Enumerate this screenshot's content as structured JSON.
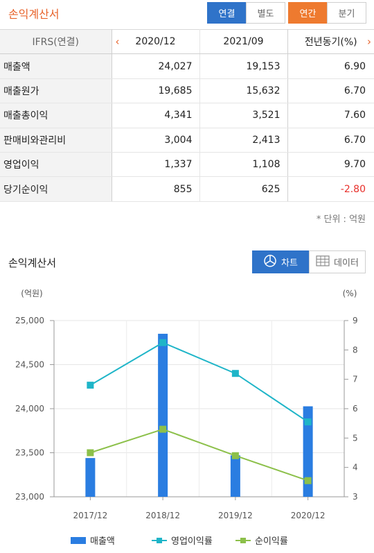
{
  "header": {
    "title": "손익계산서",
    "buttons": [
      "연결",
      "별도",
      "연간",
      "분기"
    ]
  },
  "table": {
    "columns": [
      "IFRS(연결)",
      "2020/12",
      "2021/09",
      "전년동기(%)"
    ],
    "rows": [
      {
        "label": "매출액",
        "v1": "24,027",
        "v2": "19,153",
        "v3": "6.90"
      },
      {
        "label": "매출원가",
        "v1": "19,685",
        "v2": "15,632",
        "v3": "6.70"
      },
      {
        "label": "매출총이익",
        "v1": "4,341",
        "v2": "3,521",
        "v3": "7.60"
      },
      {
        "label": "판매비와관리비",
        "v1": "3,004",
        "v2": "2,413",
        "v3": "6.70"
      },
      {
        "label": "영업이익",
        "v1": "1,337",
        "v2": "1,108",
        "v3": "9.70"
      },
      {
        "label": "당기순이익",
        "v1": "855",
        "v2": "625",
        "v3": "-2.80"
      }
    ],
    "unit": "* 단위 : 억원"
  },
  "chart_section": {
    "title": "손익계산서",
    "tabs": [
      "차트",
      "데이터"
    ],
    "icons": {
      "chart_tab": "pie-chart-icon",
      "data_tab": "table-icon"
    }
  },
  "chart_data": {
    "type": "bar",
    "categories": [
      "2017/12",
      "2018/12",
      "2019/12",
      "2020/12"
    ],
    "y_left_label": "(억원)",
    "y_right_label": "(%)",
    "ylim_left": [
      23000,
      25000
    ],
    "ylim_right": [
      3,
      9
    ],
    "yticks_left": [
      "23,000",
      "23,500",
      "24,000",
      "24,500",
      "25,000"
    ],
    "yticks_right": [
      "3",
      "4",
      "5",
      "6",
      "7",
      "8",
      "9"
    ],
    "series": [
      {
        "name": "매출액",
        "kind": "bar",
        "axis": "left",
        "color": "#2a7de1",
        "values": [
          23440,
          24850,
          23470,
          24027
        ]
      },
      {
        "name": "영업이익률",
        "kind": "line",
        "axis": "right",
        "color": "#1fb5c8",
        "values": [
          6.8,
          8.25,
          7.2,
          5.55
        ]
      },
      {
        "name": "순이익률",
        "kind": "line",
        "axis": "right",
        "color": "#8cc04a",
        "values": [
          4.5,
          5.3,
          4.4,
          3.55
        ]
      }
    ],
    "grid": true
  }
}
